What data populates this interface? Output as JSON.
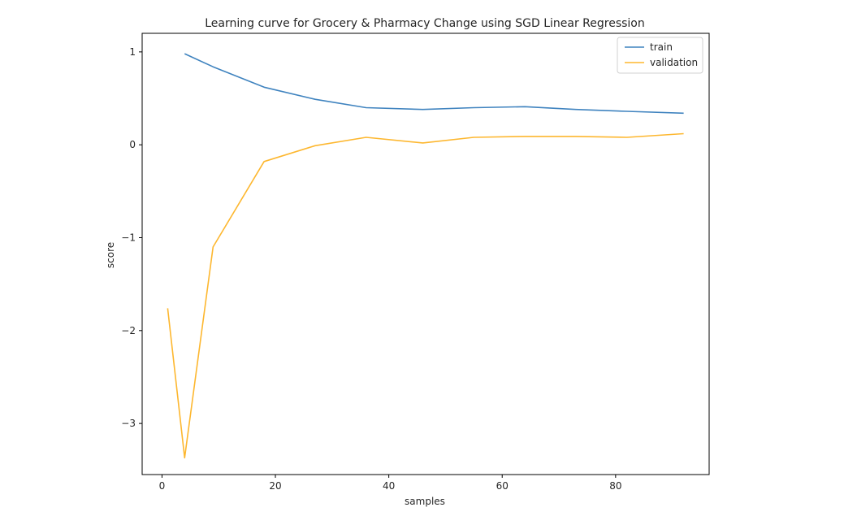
{
  "chart_data": {
    "type": "line",
    "title": "Learning curve for Grocery & Pharmacy Change using SGD Linear Regression",
    "xlabel": "samples",
    "ylabel": "score",
    "xlim": [
      -3.5,
      96.5
    ],
    "ylim": [
      -3.55,
      1.2
    ],
    "xticks": [
      0,
      20,
      40,
      60,
      80
    ],
    "yticks": [
      1,
      0,
      -1,
      -2,
      -3
    ],
    "xtick_labels": [
      "0",
      "20",
      "40",
      "60",
      "80"
    ],
    "ytick_labels": [
      "1",
      "0",
      "−1",
      "−2",
      "−3"
    ],
    "grid": false,
    "legend": "top-right",
    "series": [
      {
        "name": "train",
        "color": "#3f83bf",
        "x": [
          4,
          9,
          18,
          27,
          36,
          46,
          55,
          64,
          73,
          82,
          92
        ],
        "y": [
          0.98,
          0.84,
          0.62,
          0.49,
          0.4,
          0.38,
          0.4,
          0.41,
          0.38,
          0.36,
          0.34
        ]
      },
      {
        "name": "validation",
        "color": "#fdb72f",
        "x": [
          1,
          4,
          9,
          18,
          27,
          36,
          46,
          55,
          64,
          73,
          82,
          92
        ],
        "y": [
          -1.76,
          -3.37,
          -1.1,
          -0.18,
          -0.01,
          0.08,
          0.02,
          0.08,
          0.09,
          0.09,
          0.08,
          0.12
        ]
      }
    ]
  }
}
